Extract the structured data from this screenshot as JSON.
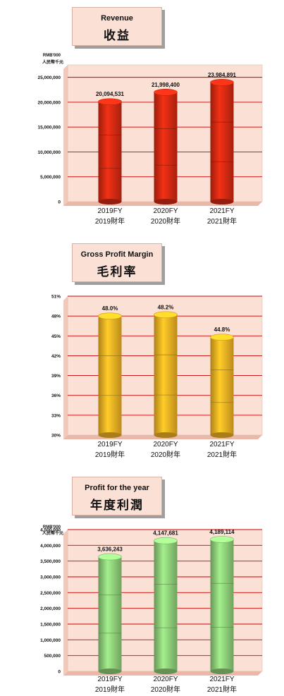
{
  "colors": {
    "plot_bg": "#fbe0d6",
    "plot_side": "#f3c9bb",
    "gridline": "#cc0000",
    "revenue_bar": "#d42a12",
    "margin_bar": "#f2b223",
    "profit_bar": "#8fd07a"
  },
  "chart_data": [
    {
      "type": "bar",
      "title": "Revenue",
      "title_zh": "收益",
      "unit": "RMB'000",
      "unit_zh": "人民幣千元",
      "categories": [
        "2019FY",
        "2020FY",
        "2021FY"
      ],
      "categories_zh": [
        "2019財年",
        "2020財年",
        "2021財年"
      ],
      "values": [
        20094531,
        21998400,
        23984891
      ],
      "value_labels": [
        "20,094,531",
        "21,998,400",
        "23,984,891"
      ],
      "ylim": [
        0,
        27500000
      ],
      "yticks": [
        0,
        5000000,
        10000000,
        15000000,
        20000000,
        25000000
      ],
      "ytick_labels": [
        "0",
        "5,000,000",
        "10,000,000",
        "15,000,000",
        "20,000,000",
        "25,000,000"
      ],
      "grid": true
    },
    {
      "type": "bar",
      "title": "Gross Profit Margin",
      "title_zh": "毛利率",
      "unit": "",
      "unit_zh": "",
      "categories": [
        "2019FY",
        "2020FY",
        "2021FY"
      ],
      "categories_zh": [
        "2019財年",
        "2020財年",
        "2021財年"
      ],
      "values": [
        48.0,
        48.2,
        44.8
      ],
      "value_labels": [
        "48.0%",
        "48.2%",
        "44.8%"
      ],
      "ylim": [
        30,
        51
      ],
      "yticks": [
        30,
        33,
        36,
        39,
        42,
        45,
        48,
        51
      ],
      "ytick_labels": [
        "30%",
        "33%",
        "36%",
        "39%",
        "42%",
        "45%",
        "48%",
        "51%"
      ],
      "grid": true
    },
    {
      "type": "bar",
      "title": "Profit for the year",
      "title_zh": "年度利潤",
      "unit": "RMB'000",
      "unit_zh": "人民幣千元",
      "categories": [
        "2019FY",
        "2020FY",
        "2021FY"
      ],
      "categories_zh": [
        "2019財年",
        "2020財年",
        "2021財年"
      ],
      "values": [
        3636243,
        4147681,
        4189114
      ],
      "value_labels": [
        "3,636,243",
        "4,147,681",
        "4,189,114"
      ],
      "ylim": [
        0,
        4500000
      ],
      "yticks": [
        0,
        500000,
        1000000,
        1500000,
        2000000,
        2500000,
        3000000,
        3500000,
        4000000,
        4500000
      ],
      "ytick_labels": [
        "0",
        "500,000",
        "1,000,000",
        "1,500,000",
        "2,000,000",
        "2,500,000",
        "3,000,000",
        "3,500,000",
        "4,000,000",
        "4,500,000"
      ],
      "grid": true
    }
  ]
}
